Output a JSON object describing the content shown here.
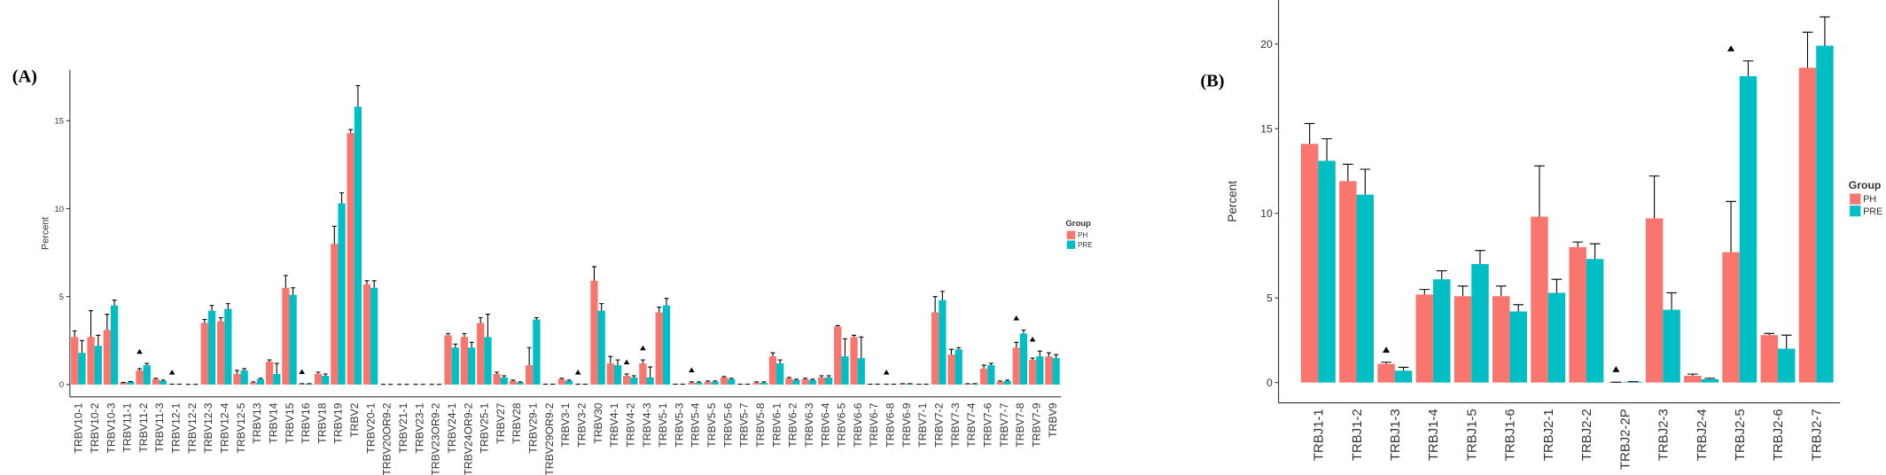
{
  "chart_data": [
    {
      "type": "bar",
      "label": "(A)",
      "ylabel": "Percent",
      "legend_title": "Group",
      "legend": "right",
      "categories": [
        "TRBV10-1",
        "TRBV10-2",
        "TRBV10-3",
        "TRBV11-1",
        "TRBV11-2",
        "TRBV11-3",
        "TRBV12-1",
        "TRBV12-2",
        "TRBV12-3",
        "TRBV12-4",
        "TRBV12-5",
        "TRBV13",
        "TRBV14",
        "TRBV15",
        "TRBV16",
        "TRBV18",
        "TRBV19",
        "TRBV2",
        "TRBV20-1",
        "TRBV20OR9-2",
        "TRBV21-1",
        "TRBV23-1",
        "TRBV23OR9-2",
        "TRBV24-1",
        "TRBV24OR9-2",
        "TRBV25-1",
        "TRBV27",
        "TRBV28",
        "TRBV29-1",
        "TRBV29OR9-2",
        "TRBV3-1",
        "TRBV3-2",
        "TRBV30",
        "TRBV4-1",
        "TRBV4-2",
        "TRBV4-3",
        "TRBV5-1",
        "TRBV5-3",
        "TRBV5-4",
        "TRBV5-5",
        "TRBV5-6",
        "TRBV5-7",
        "TRBV5-8",
        "TRBV6-1",
        "TRBV6-2",
        "TRBV6-3",
        "TRBV6-4",
        "TRBV6-5",
        "TRBV6-6",
        "TRBV6-7",
        "TRBV6-8",
        "TRBV6-9",
        "TRBV7-1",
        "TRBV7-2",
        "TRBV7-3",
        "TRBV7-4",
        "TRBV7-6",
        "TRBV7-7",
        "TRBV7-8",
        "TRBV7-9",
        "TRBV9"
      ],
      "series": [
        {
          "name": "PH",
          "color": "#f8766d",
          "values": [
            2.7,
            2.7,
            3.1,
            0.1,
            0.8,
            0.3,
            0.02,
            0.01,
            3.5,
            3.6,
            0.6,
            0.1,
            1.3,
            5.5,
            0.05,
            0.6,
            8.0,
            14.3,
            5.7,
            0.01,
            0.01,
            0.01,
            0.01,
            2.8,
            2.7,
            3.5,
            0.6,
            0.2,
            1.1,
            0.02,
            0.3,
            0.02,
            5.9,
            1.2,
            0.5,
            1.2,
            4.1,
            0.02,
            0.1,
            0.15,
            0.4,
            0.02,
            0.1,
            1.6,
            0.35,
            0.3,
            0.4,
            3.3,
            2.7,
            0.02,
            0.02,
            0.05,
            0.02,
            4.1,
            1.7,
            0.05,
            0.9,
            0.15,
            2.1,
            1.4,
            1.6
          ],
          "errors": [
            0.35,
            1.5,
            0.9,
            0.02,
            0.1,
            0.05,
            0,
            0,
            0.2,
            0.2,
            0.2,
            0.05,
            0.1,
            0.7,
            0,
            0.1,
            1.0,
            0.2,
            0.2,
            0,
            0,
            0,
            0,
            0.1,
            0.2,
            0.3,
            0.1,
            0.05,
            1.0,
            0,
            0.05,
            0,
            0.8,
            0.4,
            0.1,
            0.2,
            0.3,
            0,
            0.05,
            0.05,
            0.05,
            0,
            0.05,
            0.2,
            0.05,
            0.05,
            0.1,
            0.05,
            0.1,
            0,
            0,
            0,
            0,
            0.9,
            0.3,
            0,
            0.2,
            0.05,
            0.3,
            0.1,
            0.2
          ]
        },
        {
          "name": "PRE",
          "color": "#00bfc4",
          "values": [
            1.8,
            2.2,
            4.5,
            0.15,
            1.1,
            0.2,
            0.02,
            0.01,
            4.2,
            4.3,
            0.8,
            0.3,
            0.6,
            5.1,
            0.05,
            0.5,
            10.3,
            15.8,
            5.5,
            0.01,
            0.01,
            0.01,
            0.01,
            2.1,
            2.1,
            2.7,
            0.4,
            0.1,
            3.7,
            0.02,
            0.2,
            0.02,
            4.2,
            1.1,
            0.4,
            0.4,
            4.5,
            0.02,
            0.1,
            0.15,
            0.3,
            0.02,
            0.1,
            1.2,
            0.25,
            0.25,
            0.4,
            1.6,
            1.5,
            0.02,
            0.02,
            0.05,
            0.02,
            4.8,
            2.0,
            0.05,
            1.1,
            0.2,
            2.9,
            1.6,
            1.5
          ],
          "errors": [
            0.7,
            0.6,
            0.3,
            0.02,
            0.1,
            0.05,
            0,
            0,
            0.3,
            0.3,
            0.1,
            0.05,
            0.6,
            0.4,
            0,
            0.1,
            0.6,
            1.2,
            0.4,
            0,
            0,
            0,
            0,
            0.2,
            0.3,
            1.3,
            0.1,
            0.05,
            0.1,
            0,
            0.05,
            0,
            0.4,
            0.3,
            0.1,
            0.6,
            0.4,
            0,
            0.05,
            0.05,
            0.05,
            0,
            0.05,
            0.2,
            0.05,
            0.05,
            0.1,
            1.0,
            1.2,
            0,
            0,
            0,
            0,
            0.5,
            0.1,
            0,
            0.1,
            0.05,
            0.2,
            0.3,
            0.2
          ]
        }
      ],
      "significant": [
        false,
        false,
        false,
        false,
        true,
        false,
        true,
        false,
        false,
        false,
        false,
        false,
        false,
        false,
        true,
        false,
        false,
        false,
        false,
        false,
        false,
        false,
        false,
        false,
        false,
        false,
        false,
        false,
        false,
        false,
        false,
        true,
        false,
        false,
        true,
        true,
        false,
        false,
        true,
        false,
        false,
        false,
        false,
        false,
        false,
        false,
        false,
        false,
        false,
        false,
        true,
        false,
        false,
        false,
        false,
        false,
        false,
        false,
        true,
        true,
        false
      ],
      "ylim": [
        -0.7,
        17.9
      ],
      "yticks": [
        0,
        5,
        10,
        15
      ]
    },
    {
      "type": "bar",
      "label": "(B)",
      "ylabel": "Percent",
      "legend_title": "Group",
      "legend": "right",
      "categories": [
        "TRBJ1-1",
        "TRBJ1-2",
        "TRBJ1-3",
        "TRBJ1-4",
        "TRBJ1-5",
        "TRBJ1-6",
        "TRBJ2-1",
        "TRBJ2-2",
        "TRBJ2-2P",
        "TRBJ2-3",
        "TRBJ2-4",
        "TRBJ2-5",
        "TRBJ2-6",
        "TRBJ2-7"
      ],
      "series": [
        {
          "name": "PH",
          "color": "#f8766d",
          "values": [
            14.1,
            11.9,
            1.1,
            5.2,
            5.1,
            5.1,
            9.8,
            8.0,
            0.02,
            9.7,
            0.4,
            7.7,
            2.8,
            18.6
          ],
          "errors": [
            1.2,
            1.0,
            0.1,
            0.3,
            0.6,
            0.6,
            3.0,
            0.3,
            0,
            2.5,
            0.1,
            3.0,
            0.1,
            2.1
          ]
        },
        {
          "name": "PRE",
          "color": "#00bfc4",
          "values": [
            13.1,
            11.1,
            0.7,
            6.1,
            7.0,
            4.2,
            5.3,
            7.3,
            0.05,
            4.3,
            0.2,
            18.1,
            2.0,
            19.9
          ],
          "errors": [
            1.3,
            1.5,
            0.2,
            0.5,
            0.8,
            0.4,
            0.8,
            0.9,
            0,
            1.0,
            0.05,
            0.9,
            0.8,
            1.7
          ]
        }
      ],
      "significant": [
        false,
        false,
        true,
        false,
        false,
        false,
        false,
        false,
        true,
        false,
        false,
        true,
        false,
        false
      ],
      "ylim": [
        -1.2,
        22.6
      ],
      "yticks": [
        0,
        5,
        10,
        15,
        20
      ]
    }
  ]
}
